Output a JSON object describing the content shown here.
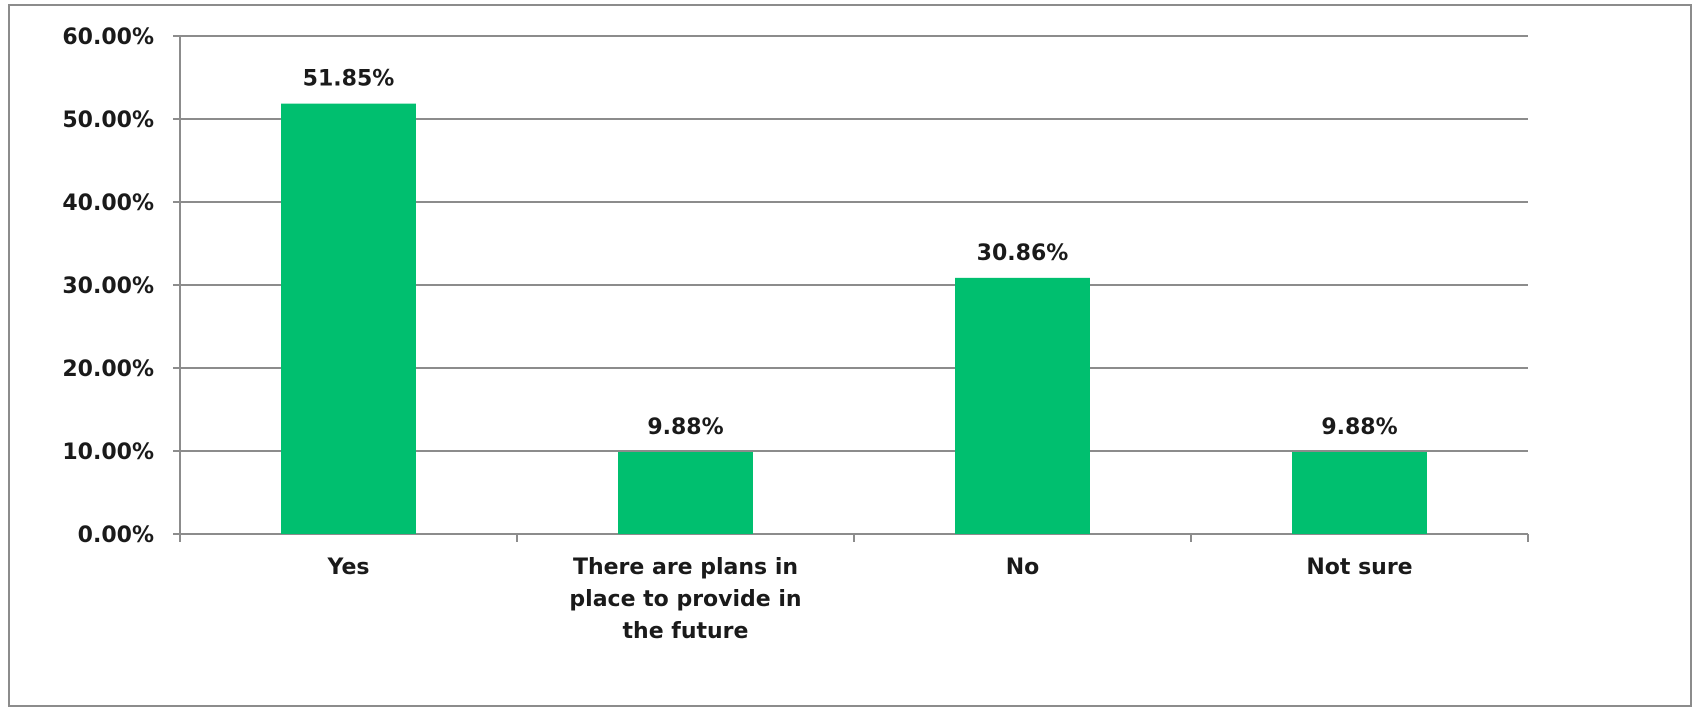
{
  "chart_data": {
    "type": "bar",
    "categories": [
      [
        "Yes"
      ],
      [
        "There are plans in",
        "place to provide in",
        "the future"
      ],
      [
        "No"
      ],
      [
        "Not sure"
      ]
    ],
    "values": [
      51.85,
      9.88,
      30.86,
      9.88
    ],
    "data_labels": [
      "51.85%",
      "9.88%",
      "30.86%",
      "9.88%"
    ],
    "ylim": [
      0,
      60
    ],
    "y_ticks": [
      0,
      10,
      20,
      30,
      40,
      50,
      60
    ],
    "y_tick_labels": [
      "0.00%",
      "10.00%",
      "20.00%",
      "30.00%",
      "40.00%",
      "50.00%",
      "60.00%"
    ],
    "grid": true,
    "legend": "none",
    "bar_color": "#00bf6f",
    "grid_color": "#8c8c8c",
    "axis_color": "#8c8c8c"
  }
}
